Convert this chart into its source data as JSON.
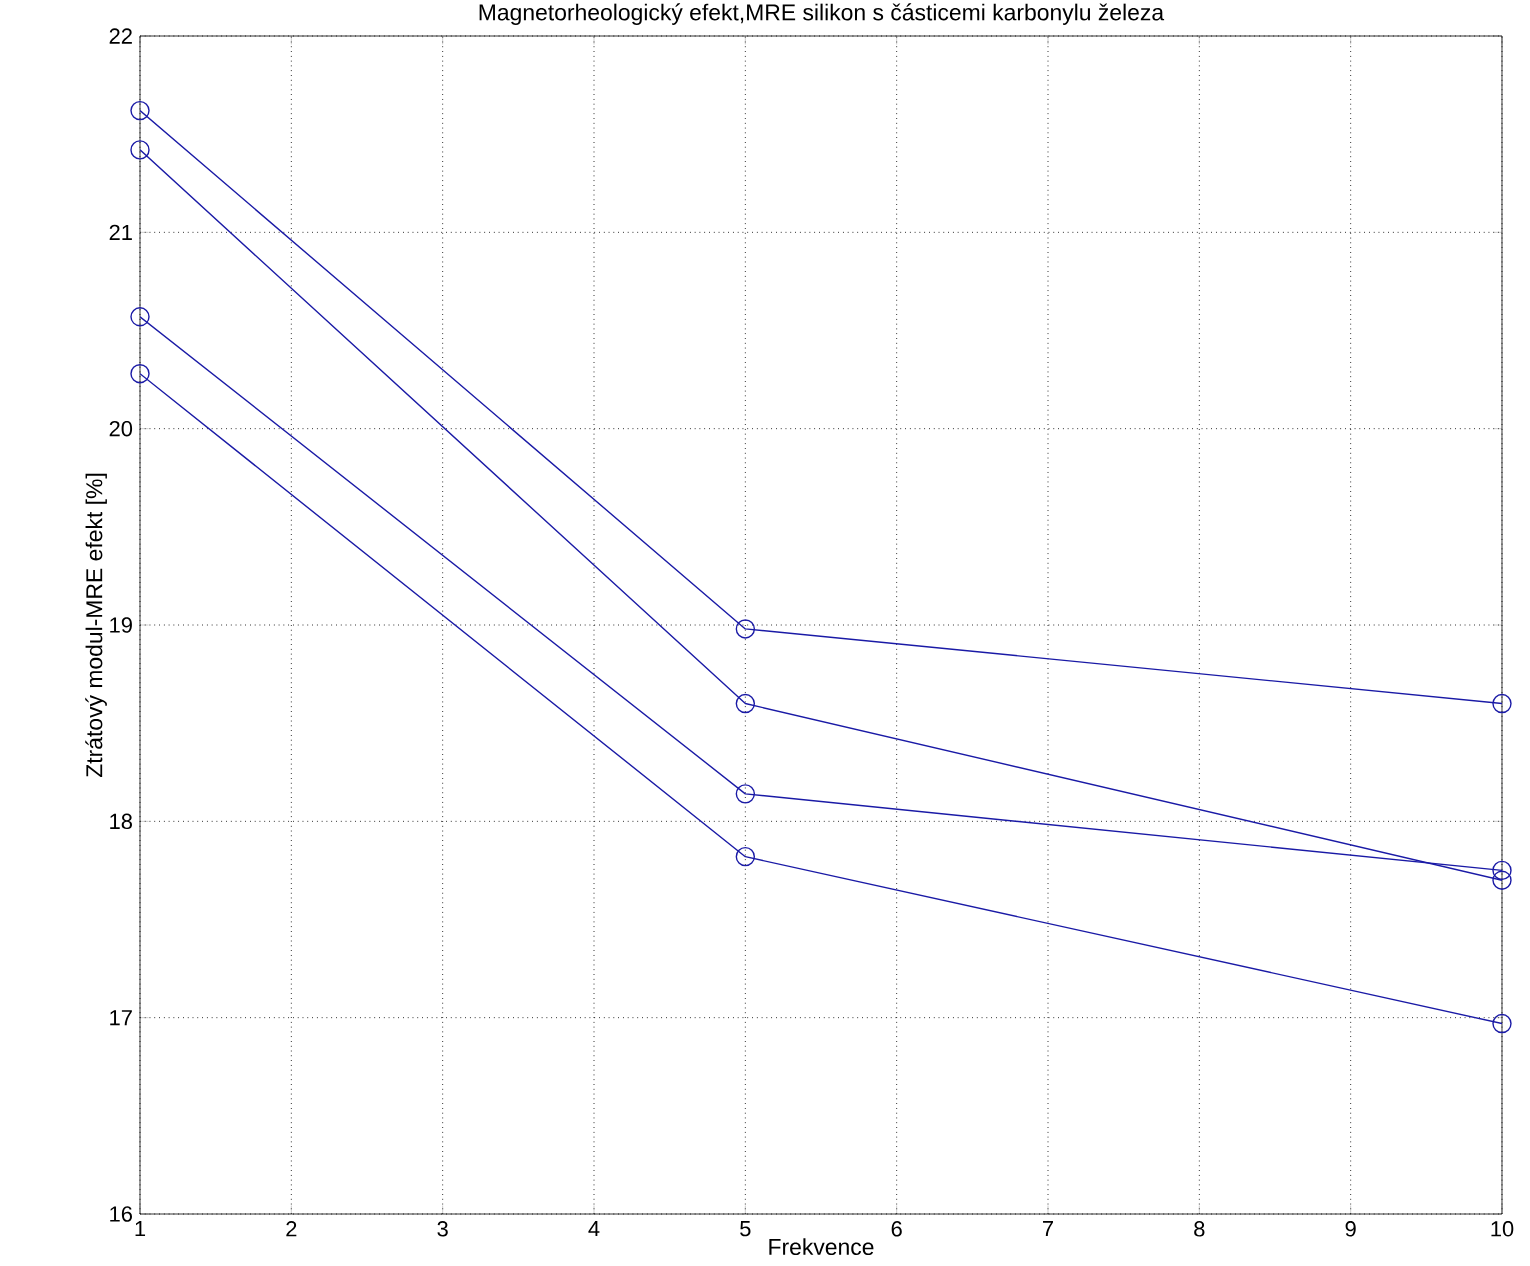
{
  "chart_data": {
    "type": "line",
    "title": "Magnetorheologický efekt,MRE silikon s částicemi karbonylu železa",
    "xlabel": "Frekvence",
    "ylabel": "Ztrátový modul-MRE efekt [%]",
    "x": [
      1,
      5,
      10
    ],
    "series": [
      {
        "color": "#1a1aa6",
        "values": [
          21.62,
          18.98,
          18.6
        ]
      },
      {
        "color": "#1a1aa6",
        "values": [
          21.42,
          18.6,
          17.7
        ]
      },
      {
        "color": "#1a1aa6",
        "values": [
          20.57,
          18.14,
          17.75
        ]
      },
      {
        "color": "#1a1aa6",
        "values": [
          20.28,
          17.82,
          16.97
        ]
      }
    ],
    "xlim": [
      1,
      10
    ],
    "ylim": [
      16,
      22
    ],
    "xticks": [
      1,
      2,
      3,
      4,
      5,
      6,
      7,
      8,
      9,
      10
    ],
    "yticks": [
      16,
      17,
      18,
      19,
      20,
      21,
      22
    ],
    "grid": true,
    "marker": "circle",
    "line_style": "solid"
  }
}
